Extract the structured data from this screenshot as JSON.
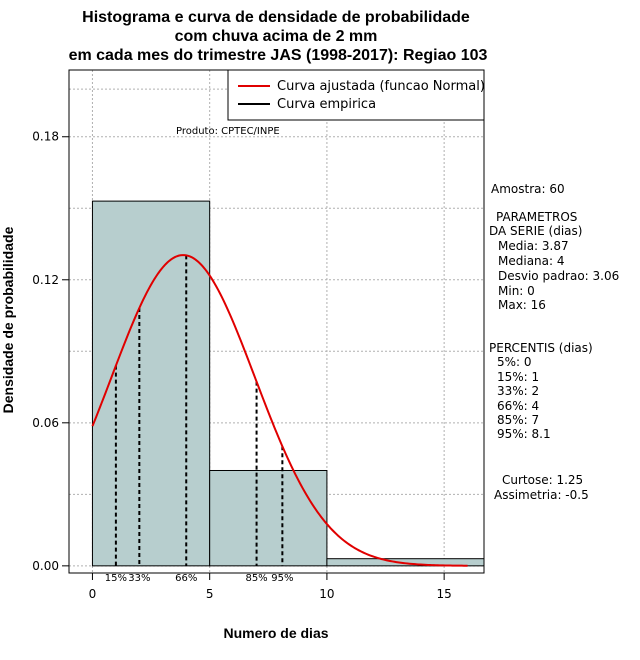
{
  "chart_data": {
    "type": "histogram",
    "title_lines": [
      "Histograma e curva de densidade de probabilidade",
      "com chuva acima de 2 mm",
      "em cada mes do trimestre JAS (1998-2017): Regiao 103"
    ],
    "xlabel": "Numero de dias",
    "ylabel": "Densidade de probabilidade",
    "xlim": [
      -1,
      16.7
    ],
    "ylim": [
      -0.003,
      0.208
    ],
    "x_ticks": [
      0,
      5,
      10,
      15
    ],
    "x_tick_labels": [
      "0",
      "5",
      "10",
      "15"
    ],
    "y_ticks": [
      0.0,
      0.06,
      0.12,
      0.18
    ],
    "y_tick_labels": [
      "0.00",
      "0.06",
      "0.12",
      "0.18"
    ],
    "grid": true,
    "bins": [
      {
        "from": 0,
        "to": 5,
        "density": 0.153
      },
      {
        "from": 5,
        "to": 10,
        "density": 0.04
      },
      {
        "from": 10,
        "to": 17,
        "density": 0.003
      }
    ],
    "bar_color": "#b7cece",
    "curve_color": "#e00000",
    "curve": {
      "mean": 3.87,
      "sd": 3.06,
      "x_from": 0,
      "x_to": 16,
      "label": "Curva ajustada (funcao Normal)"
    },
    "empirical_label": "Curva empirica",
    "product_label": "Produto: CPTEC/INPE",
    "percentile_lines": [
      {
        "x": 1,
        "label": "15%"
      },
      {
        "x": 2,
        "label": "33%"
      },
      {
        "x": 4,
        "label": "66%"
      },
      {
        "x": 7,
        "label": "85%"
      },
      {
        "x": 8.1,
        "label": "95%"
      }
    ],
    "side_panel": {
      "sample": "Amostra: 60",
      "params_title_1": "PARAMETROS",
      "params_title_2": "DA SERIE (dias)",
      "params": [
        "Media: 3.87",
        "Mediana: 4",
        "Desvio padrao: 3.06",
        "Min: 0",
        "Max: 16"
      ],
      "percentis_title": "PERCENTIS (dias)",
      "percentis": [
        "5%: 0",
        "15%: 1",
        "33%: 2",
        "66%: 4",
        "85%: 7",
        "95%: 8.1"
      ],
      "curtose": "Curtose: 1.25",
      "assimetria": "Assimetria: -0.5"
    }
  }
}
